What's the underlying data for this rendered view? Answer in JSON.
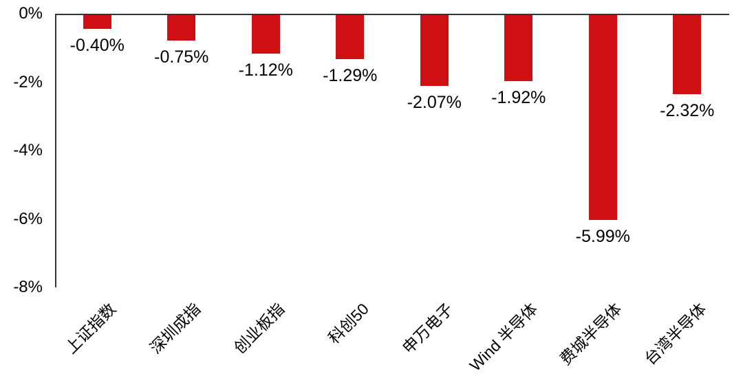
{
  "chart_data": {
    "type": "bar",
    "categories": [
      "上证指数",
      "深圳成指",
      "创业板指",
      "科创50",
      "申万电子",
      "Wind 半导体",
      "费城半导体",
      "台湾半导体"
    ],
    "values": [
      -0.4,
      -0.75,
      -1.12,
      -1.29,
      -2.07,
      -1.92,
      -5.99,
      -2.32
    ],
    "value_labels": [
      "-0.40%",
      "-0.75%",
      "-1.12%",
      "-1.29%",
      "-2.07%",
      "-1.92%",
      "-5.99%",
      "-2.32%"
    ],
    "yticks": [
      {
        "label": "0%",
        "value": 0
      },
      {
        "label": "-2%",
        "value": -2
      },
      {
        "label": "-4%",
        "value": -4
      },
      {
        "label": "-6%",
        "value": -6
      },
      {
        "label": "-8%",
        "value": -8
      }
    ],
    "ylim": [
      -8,
      0
    ],
    "grid": false,
    "legend": null,
    "colors": {
      "bar": "#CE1014",
      "axis": "#333333",
      "text": "#000000",
      "background": "#FFFFFF"
    }
  }
}
